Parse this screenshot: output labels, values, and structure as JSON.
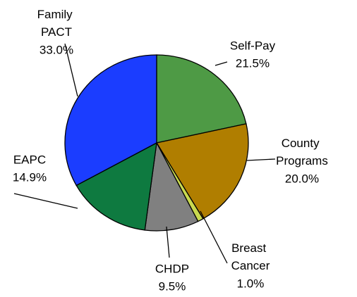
{
  "chart_data": {
    "type": "pie",
    "categories": [
      "Self-Pay",
      "County Programs",
      "Breast Cancer",
      "CHDP",
      "EAPC",
      "Family PACT"
    ],
    "values": [
      21.5,
      20.0,
      1.0,
      9.5,
      14.9,
      33.0
    ],
    "value_labels": [
      "21.5%",
      "20.0%",
      "1.0%",
      "9.5%",
      "14.9%",
      "33.0%"
    ],
    "colors": [
      "#4e9a45",
      "#b07e00",
      "#c9d94f",
      "#808080",
      "#0e7a40",
      "#1b3dff"
    ]
  }
}
